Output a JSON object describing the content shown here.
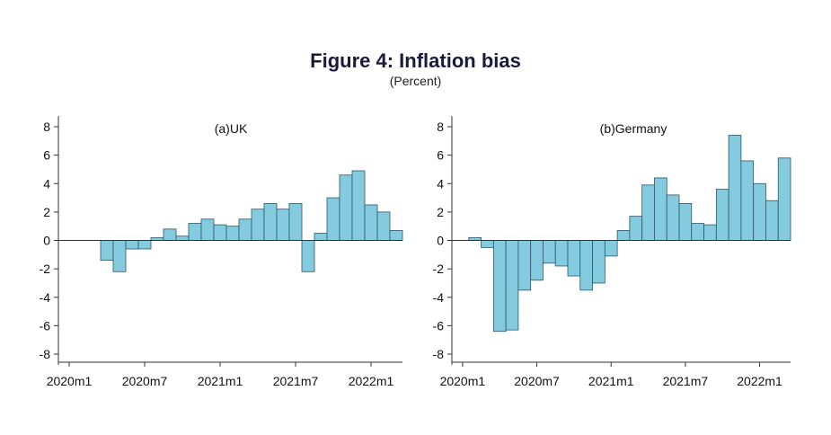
{
  "title": "Figure 4: Inflation bias",
  "subtitle": "(Percent)",
  "chart_data": [
    {
      "type": "bar",
      "title": "(a)UK",
      "xlabel": "",
      "ylabel": "",
      "ylim": [
        -8.5,
        8.5
      ],
      "yticks": [
        -8,
        -6,
        -4,
        -2,
        0,
        2,
        4,
        6,
        8
      ],
      "xtick_labels": [
        "2020m1",
        "2020m7",
        "2021m1",
        "2021m7",
        "2022m1"
      ],
      "categories": [
        "2020m4",
        "2020m5",
        "2020m6",
        "2020m7",
        "2020m8",
        "2020m9",
        "2020m10",
        "2020m11",
        "2020m12",
        "2021m1",
        "2021m2",
        "2021m3",
        "2021m4",
        "2021m5",
        "2021m6",
        "2021m7",
        "2021m8",
        "2021m9",
        "2021m10",
        "2021m11",
        "2021m12",
        "2022m1",
        "2022m2",
        "2022m3"
      ],
      "values": [
        -1.4,
        -2.2,
        -0.6,
        -0.6,
        0.2,
        0.8,
        0.3,
        1.2,
        1.5,
        1.1,
        1.0,
        1.5,
        2.2,
        2.6,
        2.2,
        2.6,
        -2.2,
        0.5,
        3.0,
        4.6,
        4.9,
        2.5,
        2.0,
        0.7
      ],
      "grid": false,
      "legend": "none"
    },
    {
      "type": "bar",
      "title": "(b)Germany",
      "xlabel": "",
      "ylabel": "",
      "ylim": [
        -8.5,
        8.5
      ],
      "yticks": [
        -8,
        -6,
        -4,
        -2,
        0,
        2,
        4,
        6,
        8
      ],
      "xtick_labels": [
        "2020m1",
        "2020m7",
        "2021m1",
        "2021m7",
        "2022m1"
      ],
      "categories": [
        "2020m2",
        "2020m3",
        "2020m4",
        "2020m5",
        "2020m6",
        "2020m7",
        "2020m8",
        "2020m9",
        "2020m10",
        "2020m11",
        "2020m12",
        "2021m1",
        "2021m2",
        "2021m3",
        "2021m4",
        "2021m5",
        "2021m6",
        "2021m7",
        "2021m8",
        "2021m9",
        "2021m10",
        "2021m11",
        "2021m12",
        "2022m1",
        "2022m2",
        "2022m3"
      ],
      "values": [
        0.2,
        -0.5,
        -6.4,
        -6.3,
        -3.5,
        -2.8,
        -1.6,
        -1.8,
        -2.5,
        -3.5,
        -3.0,
        -1.1,
        0.7,
        1.7,
        3.9,
        4.4,
        3.2,
        2.6,
        1.2,
        1.1,
        3.6,
        7.4,
        5.6,
        4.0,
        2.8,
        5.8
      ],
      "grid": false,
      "legend": "none"
    }
  ]
}
